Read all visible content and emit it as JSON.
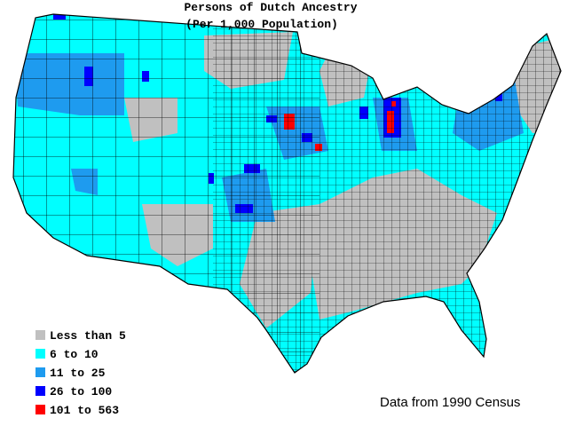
{
  "title": "Persons of Dutch Ancestry",
  "subtitle": "(Per 1,000 Population)",
  "legend": [
    {
      "label": "Less than 5",
      "color": "#c0c0c0"
    },
    {
      "label": "6 to 10",
      "color": "#00ffff"
    },
    {
      "label": "11 to 25",
      "color": "#1e9bef"
    },
    {
      "label": "26 to 100",
      "color": "#0000ff"
    },
    {
      "label": "101 to 563",
      "color": "#ff0000"
    }
  ],
  "source": "Data from 1990 Census"
}
